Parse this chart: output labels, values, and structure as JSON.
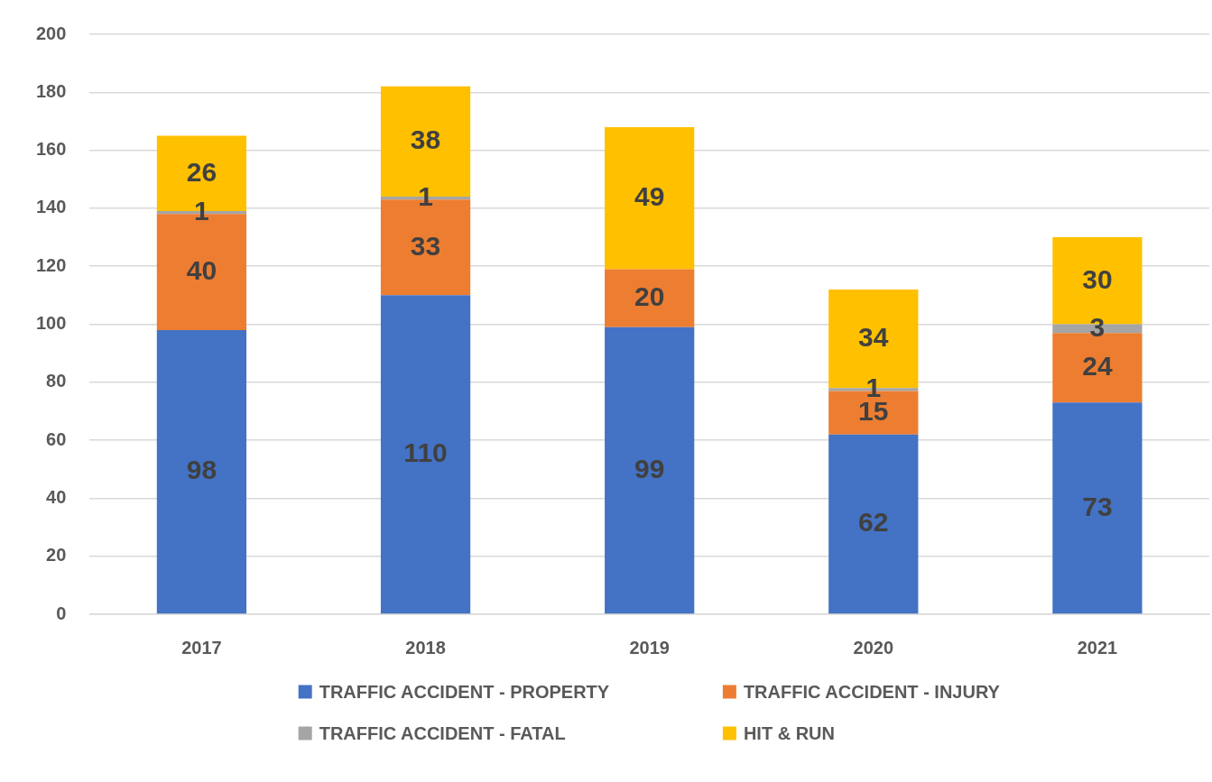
{
  "chart_data": {
    "type": "bar",
    "stacked": true,
    "categories": [
      "2017",
      "2018",
      "2019",
      "2020",
      "2021"
    ],
    "series": [
      {
        "name": "TRAFFIC ACCIDENT - PROPERTY",
        "color": "#4472c4",
        "values": [
          98,
          110,
          99,
          62,
          73
        ]
      },
      {
        "name": "TRAFFIC ACCIDENT - INJURY",
        "color": "#ed7d31",
        "values": [
          40,
          33,
          20,
          15,
          24
        ]
      },
      {
        "name": "TRAFFIC ACCIDENT - FATAL",
        "color": "#a5a5a5",
        "values": [
          1,
          1,
          null,
          1,
          3
        ]
      },
      {
        "name": "HIT & RUN",
        "color": "#ffc000",
        "values": [
          26,
          38,
          49,
          34,
          30
        ]
      }
    ],
    "ylim": [
      0,
      200
    ],
    "yticks": [
      0,
      20,
      40,
      60,
      80,
      100,
      120,
      140,
      160,
      180,
      200
    ],
    "grid": "y",
    "legend": "bottom",
    "data_labels": true
  }
}
